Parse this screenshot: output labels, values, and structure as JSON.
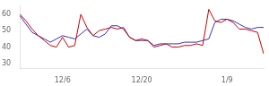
{
  "chart_data": {
    "type": "line",
    "categories": [
      null,
      null,
      null,
      null,
      null,
      null,
      null,
      "12/6",
      null,
      null,
      null,
      null,
      null,
      null,
      null,
      null,
      null,
      null,
      null,
      null,
      "12/20",
      null,
      null,
      null,
      null,
      null,
      null,
      null,
      null,
      null,
      null,
      null,
      null,
      null,
      "1/9",
      null,
      null,
      null,
      null,
      null,
      null
    ],
    "series": [
      {
        "color": "#cc0000",
        "values": [
          60,
          56,
          51,
          47,
          44,
          41,
          40,
          46,
          40,
          41,
          60,
          52,
          47,
          50,
          51,
          52,
          51,
          52,
          46,
          44,
          45,
          44,
          40,
          41,
          42,
          40,
          40,
          41,
          41,
          42,
          41,
          63,
          56,
          55,
          57,
          55,
          51,
          51,
          50,
          49,
          36
        ]
      },
      {
        "color": "#3333bb",
        "values": [
          59,
          54,
          49,
          47,
          45,
          43,
          45,
          47,
          46,
          45,
          48,
          51,
          47,
          46,
          48,
          53,
          53,
          51,
          46,
          44,
          44,
          44,
          41,
          42,
          42,
          42,
          42,
          43,
          43,
          43,
          44,
          45,
          55,
          57,
          57,
          56,
          54,
          52,
          51,
          52,
          52
        ]
      }
    ],
    "ylim": [
      27,
      65
    ],
    "yticks": [
      30,
      40,
      50,
      60
    ],
    "grid": false
  }
}
